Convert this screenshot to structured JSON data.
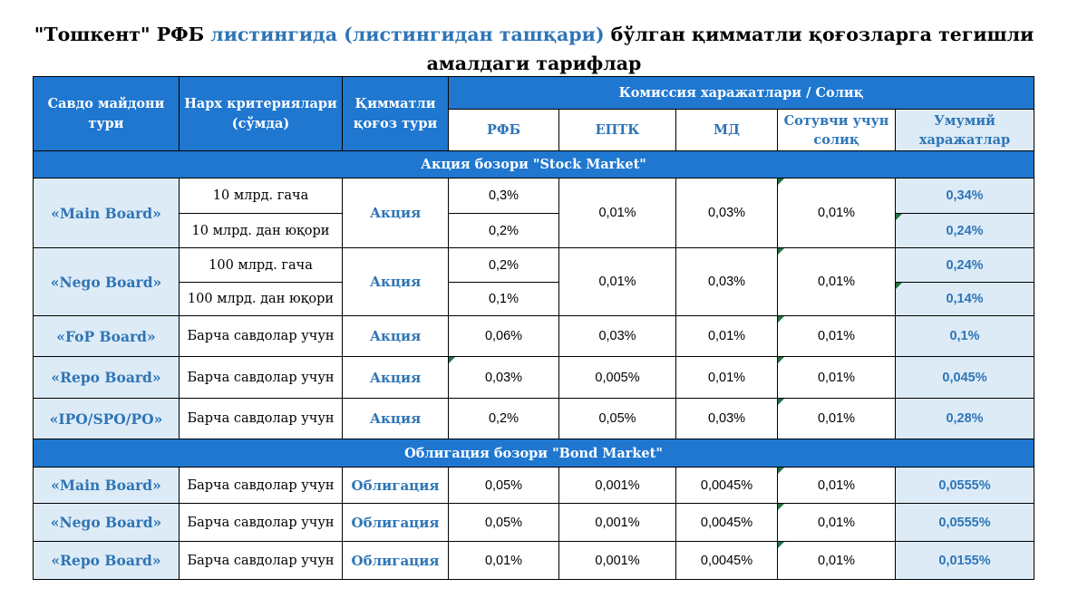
{
  "title": {
    "part1": "\"Тошкент\" РФБ ",
    "part2": "листингида (листингидан ташқари)",
    "part3": " бўлган қимматли қоғозларга тегишли амалдаги тарифлар"
  },
  "header": {
    "col_trading_floor": "Савдо майдони тури",
    "col_price_criteria": "Нарх критериялари (сўмда)",
    "col_security_type": "Қимматли қоғоз тури",
    "col_commission_group": "Комиссия харажатлари / Солиқ",
    "sub_rfb": "РФБ",
    "sub_eptk": "ЕПТК",
    "sub_md": "МД",
    "sub_seller_tax": "Сотувчи учун солиқ",
    "sub_total": "Умумий харажатлар"
  },
  "stock_market": {
    "section_title": "Акция бозори \"Stock Market\"",
    "rows": [
      {
        "board": "«Main Board»",
        "criteria": [
          "10 млрд. гача",
          "10 млрд. дан юқори"
        ],
        "type": "Акция",
        "rfb": [
          "0,3%",
          "0,2%"
        ],
        "eptk": "0,01%",
        "md": "0,03%",
        "tax": "0,01%",
        "total": [
          "0,34%",
          "0,24%"
        ]
      },
      {
        "board": "«Nego Board»",
        "criteria": [
          "100 млрд. гача",
          "100 млрд. дан юқори"
        ],
        "type": "Акция",
        "rfb": [
          "0,2%",
          "0,1%"
        ],
        "eptk": "0,01%",
        "md": "0,03%",
        "tax": "0,01%",
        "total": [
          "0,24%",
          "0,14%"
        ]
      },
      {
        "board": "«FoP Board»",
        "criteria": [
          "Барча савдолар учун"
        ],
        "type": "Акция",
        "rfb": [
          "0,06%"
        ],
        "eptk": "0,03%",
        "md": "0,01%",
        "tax": "0,01%",
        "total": [
          "0,1%"
        ]
      },
      {
        "board": "«Repo Board»",
        "criteria": [
          "Барча савдолар учун"
        ],
        "type": "Акция",
        "rfb": [
          "0,03%"
        ],
        "eptk": "0,005%",
        "md": "0,01%",
        "tax": "0,01%",
        "total": [
          "0,045%"
        ]
      },
      {
        "board": "«IPO/SPO/PO»",
        "criteria": [
          "Барча савдолар учун"
        ],
        "type": "Акция",
        "rfb": [
          "0,2%"
        ],
        "eptk": "0,05%",
        "md": "0,03%",
        "tax": "0,01%",
        "total": [
          "0,28%"
        ]
      }
    ]
  },
  "bond_market": {
    "section_title": "Облигация бозори \"Bond Market\"",
    "rows": [
      {
        "board": "«Main Board»",
        "criteria": "Барча савдолар учун",
        "type": "Облигация",
        "rfb": "0,05%",
        "eptk": "0,001%",
        "md": "0,0045%",
        "tax": "0,01%",
        "total": "0,0555%"
      },
      {
        "board": "«Nego Board»",
        "criteria": "Барча савдолар учун",
        "type": "Облигация",
        "rfb": "0,05%",
        "eptk": "0,001%",
        "md": "0,0045%",
        "tax": "0,01%",
        "total": "0,0555%"
      },
      {
        "board": "«Repo Board»",
        "criteria": "Барча савдолар учун",
        "type": "Облигация",
        "rfb": "0,01%",
        "eptk": "0,001%",
        "md": "0,0045%",
        "tax": "0,01%",
        "total": "0,0155%"
      }
    ]
  },
  "colors": {
    "header_blue": "#1F77D0",
    "light_blue": "#DDEBF7",
    "accent_text": "#2E75B6",
    "comment_marker": "#217346"
  }
}
